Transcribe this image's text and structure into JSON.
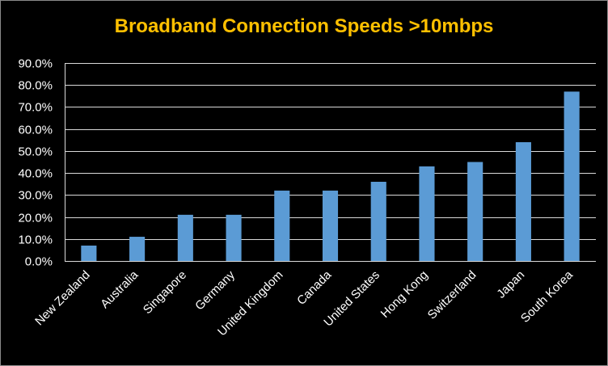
{
  "chart_data": {
    "type": "bar",
    "title": "Broadband Connection Speeds >10mbps",
    "xlabel": "",
    "ylabel": "",
    "categories": [
      "New Zealand",
      "Australia",
      "Singapore",
      "Germany",
      "United Kingdom",
      "Canada",
      "United States",
      "Hong Kong",
      "Switzerland",
      "Japan",
      "South Korea"
    ],
    "values": [
      7.0,
      11.0,
      21.0,
      21.0,
      32.0,
      32.0,
      36.0,
      43.0,
      45.0,
      54.0,
      77.0
    ],
    "y_ticks": [
      "0.0%",
      "10.0%",
      "20.0%",
      "30.0%",
      "40.0%",
      "50.0%",
      "60.0%",
      "70.0%",
      "80.0%",
      "90.0%"
    ],
    "ylim": [
      0,
      90
    ],
    "grid": true,
    "legend": "none",
    "colors": {
      "background": "#000000",
      "bar": "#5b9bd5",
      "title": "#ffc000",
      "text": "#ffffff",
      "grid": "#d9d9d9"
    }
  }
}
